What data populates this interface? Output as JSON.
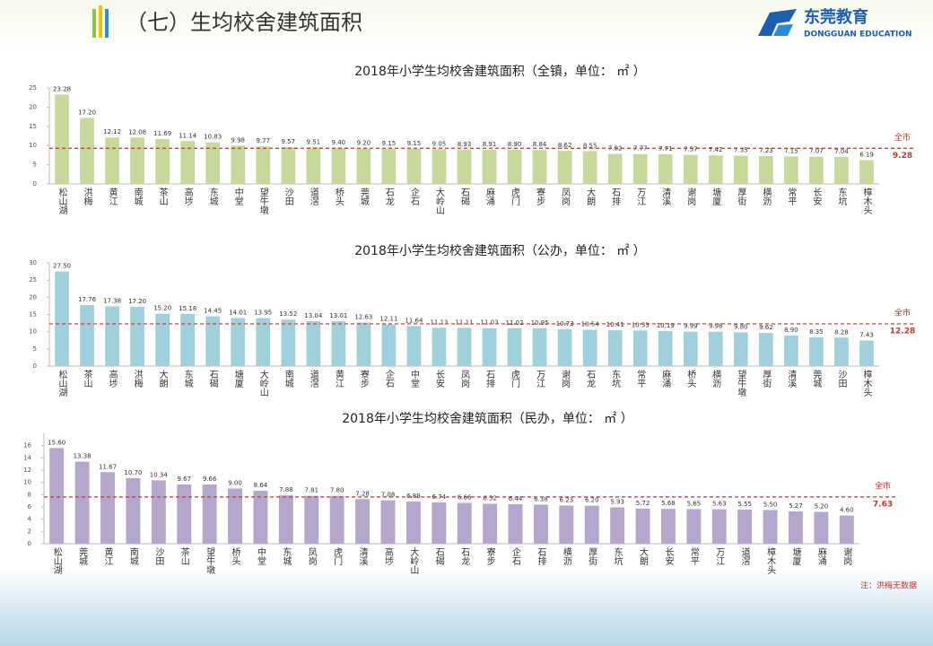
{
  "header": {
    "title": "（七）生均校舍建筑面积",
    "logo_cn": "东莞教育",
    "logo_en": "DONGGUAN EDUCATION"
  },
  "note": "注：洪梅无数据",
  "chart_data": [
    {
      "type": "bar",
      "title": "2018年小学生均校舍建筑面积（全镇，单位： ㎡ ）",
      "color": "#c6d99b",
      "categories": [
        "松山湖",
        "洪梅",
        "黄江",
        "南城",
        "茶山",
        "高埗",
        "东城",
        "中堂",
        "望牛墩",
        "沙田",
        "道滘",
        "桥头",
        "莞城",
        "石龙",
        "企石",
        "大岭山",
        "石碣",
        "麻涌",
        "虎门",
        "寮步",
        "凤岗",
        "大朗",
        "石排",
        "万江",
        "清溪",
        "谢岗",
        "塘厦",
        "厚街",
        "横沥",
        "常平",
        "长安",
        "东坑",
        "樟木头"
      ],
      "values": [
        23.28,
        17.2,
        12.12,
        12.08,
        11.69,
        11.14,
        10.83,
        9.98,
        9.77,
        9.57,
        9.51,
        9.4,
        9.2,
        9.15,
        9.15,
        9.05,
        8.93,
        8.91,
        8.9,
        8.84,
        8.62,
        8.55,
        7.82,
        7.77,
        7.71,
        7.57,
        7.42,
        7.35,
        7.23,
        7.15,
        7.07,
        7.04,
        6.19
      ],
      "value_labels": [
        "23.28",
        "17.20",
        "12.12",
        "12.08",
        "11.69",
        "11.14",
        "10.83",
        "9.98",
        "9.77",
        "9.57",
        "9.51",
        "9.40",
        "9.20",
        "9.15",
        "9.15",
        "9.05",
        "8.93",
        "8.91",
        "8.90",
        "8.84",
        "8.62",
        "8.55",
        "7.82",
        "7.77",
        "7.71",
        "7.57",
        "7.42",
        "7.35",
        "7.23",
        "7.15",
        "7.07",
        "7.04",
        "6.19"
      ],
      "ylim": [
        0,
        25
      ],
      "yticks": [
        0,
        5,
        10,
        15,
        20,
        25
      ],
      "ref_line": {
        "label": "全市",
        "value": 9.28,
        "color": "#c0392b"
      }
    },
    {
      "type": "bar",
      "title": "2018年小学生均校舍建筑面积（公办，单位： ㎡ ）",
      "color": "#9fd0dc",
      "categories": [
        "松山湖",
        "茶山",
        "高埗",
        "洪梅",
        "大朗",
        "东城",
        "石碣",
        "塘厦",
        "大岭山",
        "南城",
        "道滘",
        "黄江",
        "寮步",
        "企石",
        "中堂",
        "长安",
        "凤岗",
        "石排",
        "虎门",
        "万江",
        "谢岗",
        "石龙",
        "东坑",
        "常平",
        "麻涌",
        "桥头",
        "横沥",
        "望牛墩",
        "厚街",
        "清溪",
        "莞城",
        "沙田",
        "樟木头"
      ],
      "values": [
        27.5,
        17.76,
        17.38,
        17.2,
        15.2,
        15.18,
        14.45,
        14.01,
        13.95,
        13.52,
        13.04,
        13.01,
        12.63,
        12.11,
        11.64,
        11.13,
        11.11,
        11.03,
        11.02,
        10.95,
        10.73,
        10.54,
        10.41,
        10.33,
        10.19,
        9.99,
        9.98,
        9.8,
        9.62,
        8.9,
        8.35,
        8.28,
        7.43
      ],
      "value_labels": [
        "27.50",
        "17.76",
        "17.38",
        "17.20",
        "15.20",
        "15.18",
        "14.45",
        "14.01",
        "13.95",
        "13.52",
        "13.04",
        "13.01",
        "12.63",
        "12.11",
        "11.64",
        "11.13",
        "11.11",
        "11.03",
        "11.02",
        "10.95",
        "10.73",
        "10.54",
        "10.41",
        "10.33",
        "10.19",
        "9.99",
        "9.98",
        "9.80",
        "9.62",
        "8.90",
        "8.35",
        "8.28",
        "7.43"
      ],
      "ylim": [
        0,
        30
      ],
      "yticks": [
        0,
        5,
        10,
        15,
        20,
        25,
        30
      ],
      "ref_line": {
        "label": "全市",
        "value": 12.28,
        "color": "#c0392b"
      }
    },
    {
      "type": "bar",
      "title": "2018年小学生均校舍建筑面积（民办，单位： ㎡ ）",
      "color": "#b4a6cd",
      "categories": [
        "松山湖",
        "莞城",
        "黄江",
        "南城",
        "沙田",
        "茶山",
        "望牛墩",
        "桥头",
        "中堂",
        "东城",
        "凤岗",
        "虎门",
        "清溪",
        "高埗",
        "大岭山",
        "石碣",
        "石龙",
        "寮步",
        "企石",
        "石排",
        "横沥",
        "厚街",
        "东坑",
        "大朗",
        "长安",
        "常平",
        "万江",
        "道滘",
        "樟木头",
        "塘厦",
        "麻涌",
        "谢岗"
      ],
      "values": [
        15.6,
        13.38,
        11.67,
        10.7,
        10.34,
        9.67,
        9.66,
        9.0,
        8.64,
        7.88,
        7.81,
        7.8,
        7.28,
        7.08,
        6.89,
        6.74,
        6.66,
        6.52,
        6.44,
        6.38,
        6.23,
        6.2,
        5.93,
        5.72,
        5.68,
        5.65,
        5.63,
        5.55,
        5.5,
        5.27,
        5.2,
        4.6
      ],
      "value_labels": [
        "15.60",
        "13.38",
        "11.67",
        "10.70",
        "10.34",
        "9.67",
        "9.66",
        "9.00",
        "8.64",
        "7.88",
        "7.81",
        "7.80",
        "7.28",
        "7.08",
        "6.89",
        "6.74",
        "6.66",
        "6.52",
        "6.44",
        "6.38",
        "6.23",
        "6.20",
        "5.93",
        "5.72",
        "5.68",
        "5.65",
        "5.63",
        "5.55",
        "5.50",
        "5.27",
        "5.20",
        "4.60"
      ],
      "ylim": [
        0,
        18
      ],
      "yticks": [
        0,
        2,
        4,
        6,
        8,
        10,
        12,
        14,
        16
      ],
      "ref_line": {
        "label": "全市",
        "value": 7.63,
        "color": "#c0392b"
      }
    }
  ]
}
